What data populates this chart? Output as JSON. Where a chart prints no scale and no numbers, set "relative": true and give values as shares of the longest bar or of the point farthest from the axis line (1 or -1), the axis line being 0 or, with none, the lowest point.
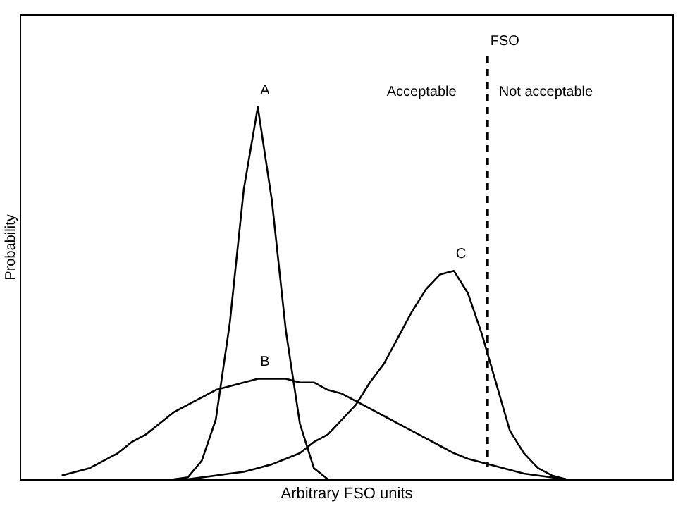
{
  "chart_data": {
    "type": "line",
    "relative": true,
    "xlabel": "Arbitrary FSO units",
    "ylabel": "Probability",
    "tick_labels": false,
    "grid": false,
    "line_style": "solid",
    "marker": "none",
    "categories": [
      null,
      null,
      null,
      null,
      null,
      null,
      null,
      null,
      null,
      null,
      null,
      null,
      null,
      null,
      null,
      null,
      null,
      null,
      null,
      null,
      null,
      null,
      null,
      null,
      null,
      null,
      null,
      null,
      null,
      null,
      null,
      null,
      null,
      null,
      null,
      null,
      null,
      null,
      null,
      null,
      null,
      null,
      null,
      null,
      null,
      null,
      null
    ],
    "series": [
      {
        "name": "A",
        "color": "#000000",
        "values": [
          null,
          null,
          null,
          null,
          null,
          null,
          null,
          null,
          null,
          null,
          null,
          0,
          0.005,
          0.05,
          0.16,
          0.42,
          0.78,
          1.0,
          0.75,
          0.4,
          0.15,
          0.03,
          0,
          null,
          null,
          null,
          null,
          null,
          null,
          null,
          null,
          null,
          null,
          null,
          null,
          null,
          null,
          null,
          null,
          null,
          null,
          null,
          null,
          null,
          null,
          null,
          null
        ]
      },
      {
        "name": "B",
        "color": "#000000",
        "values": [
          null,
          null,
          null,
          0.01,
          0.02,
          0.03,
          0.05,
          0.07,
          0.1,
          0.12,
          0.15,
          0.18,
          0.2,
          0.22,
          0.24,
          0.25,
          0.26,
          0.27,
          0.27,
          0.27,
          0.26,
          0.26,
          0.24,
          0.23,
          0.21,
          0.19,
          0.17,
          0.15,
          0.13,
          0.11,
          0.09,
          0.07,
          0.055,
          0.045,
          0.035,
          0.025,
          0.015,
          0.01,
          0.005,
          0,
          null,
          null,
          null,
          null,
          null,
          null,
          null
        ]
      },
      {
        "name": "C",
        "color": "#000000",
        "values": [
          null,
          null,
          null,
          null,
          null,
          null,
          null,
          null,
          null,
          null,
          null,
          null,
          0,
          0.005,
          0.01,
          0.015,
          0.02,
          0.03,
          0.04,
          0.055,
          0.07,
          0.1,
          0.12,
          0.16,
          0.2,
          0.26,
          0.31,
          0.38,
          0.45,
          0.51,
          0.55,
          0.56,
          0.5,
          0.39,
          0.26,
          0.13,
          0.07,
          0.03,
          0.01,
          0,
          null,
          null,
          null,
          null,
          null,
          null,
          null
        ]
      }
    ],
    "annotations": [
      "FSO",
      "Acceptable",
      "Not acceptable"
    ]
  }
}
